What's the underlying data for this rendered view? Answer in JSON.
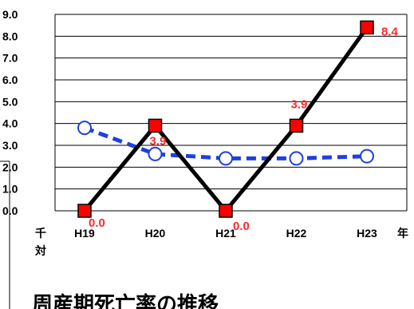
{
  "chart_data": {
    "type": "line",
    "categories": [
      "H19",
      "H20",
      "H21",
      "H22",
      "H23"
    ],
    "ylim": [
      0,
      9
    ],
    "yticks": [
      "0.0",
      "1.0",
      "2.0",
      "3.0",
      "4.0",
      "5.0",
      "6.0",
      "7.0",
      "8.0",
      "9.0"
    ],
    "x_unit": "年",
    "y_unit": "千\n対",
    "series": [
      {
        "values": [
          0.0,
          3.9,
          0.0,
          3.9,
          8.4
        ],
        "data_labels": [
          "0.0",
          "3.9",
          "0.0",
          "3.9",
          "8.4"
        ],
        "line_color": "#000000",
        "marker": "square",
        "marker_color": "#ff0000",
        "line_style": "solid"
      },
      {
        "values": [
          3.8,
          2.6,
          2.4,
          2.4,
          2.5
        ],
        "line_color": "#1f3fe0",
        "marker": "circle",
        "marker_color": "#ffffff",
        "line_style": "dashed"
      }
    ],
    "grid": true,
    "legend": "none"
  },
  "caption": "周産期死亡率の推移",
  "colors": {
    "label": "#ff2a2a",
    "grid": "#000000"
  }
}
